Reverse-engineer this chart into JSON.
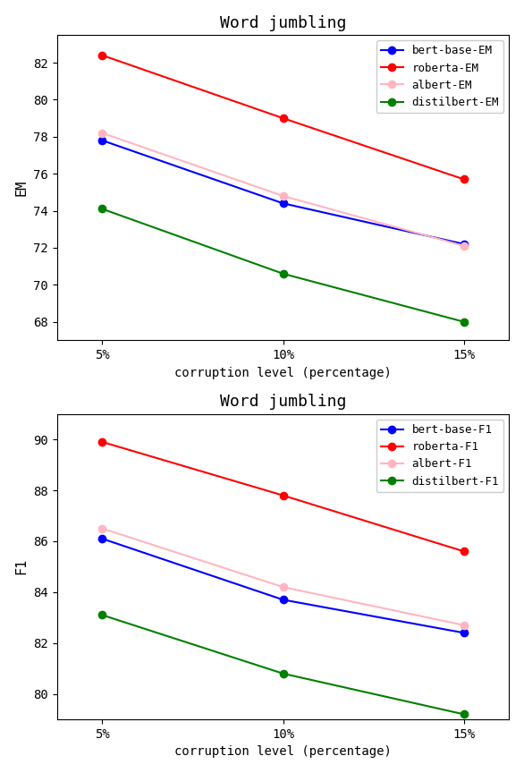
{
  "title": "Word jumbling",
  "x_labels": [
    "5%",
    "10%",
    "15%"
  ],
  "x_values": [
    0,
    1,
    2
  ],
  "xlabel": "corruption level (percentage)",
  "em": {
    "ylabel": "EM",
    "bert_base": [
      77.8,
      74.4,
      72.2
    ],
    "roberta": [
      82.4,
      79.0,
      75.7
    ],
    "albert": [
      78.2,
      74.8,
      72.1
    ],
    "distilbert": [
      74.1,
      70.6,
      68.0
    ],
    "ylim": [
      67.0,
      83.5
    ],
    "yticks": [
      68,
      70,
      72,
      74,
      76,
      78,
      80,
      82
    ]
  },
  "f1": {
    "ylabel": "F1",
    "bert_base": [
      86.1,
      83.7,
      82.4
    ],
    "roberta": [
      89.9,
      87.8,
      85.6
    ],
    "albert": [
      86.5,
      84.2,
      82.7
    ],
    "distilbert": [
      83.1,
      80.8,
      79.2
    ],
    "ylim": [
      79.0,
      91.0
    ],
    "yticks": [
      80,
      82,
      84,
      86,
      88,
      90
    ]
  },
  "colors": {
    "bert_base": "blue",
    "roberta": "red",
    "albert": "#ffb6c1",
    "distilbert": "green"
  },
  "legend_em": [
    "bert-base-EM",
    "roberta-EM",
    "albert-EM",
    "distilbert-EM"
  ],
  "legend_f1": [
    "bert-base-F1",
    "roberta-F1",
    "albert-F1",
    "distilbert-F1"
  ],
  "figsize": [
    5.86,
    8.64
  ],
  "dpi": 100
}
